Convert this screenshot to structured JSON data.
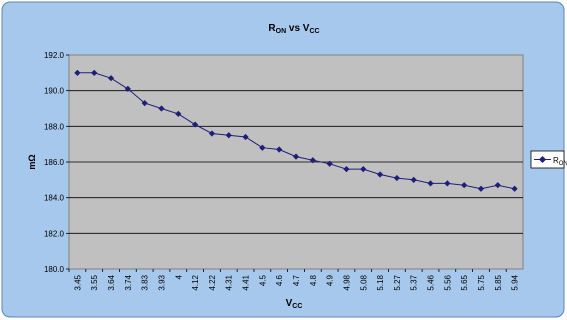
{
  "chart_data": {
    "type": "line",
    "title": {
      "main": "R",
      "main_sub": "ON",
      "mid": " vs V",
      "mid_sub": "CC"
    },
    "xlabel": {
      "main": "V",
      "sub": "CC"
    },
    "ylabel": "mΩ",
    "ylim": [
      180,
      192
    ],
    "yticks": [
      "180.0",
      "182.0",
      "184.0",
      "186.0",
      "188.0",
      "190.0",
      "192.0"
    ],
    "grid": true,
    "legend_position": "right",
    "colors": {
      "series": "#1F1F7A",
      "plot_bg": "#C0C0C0",
      "frame_bg": "#A6C8EC",
      "gridline": "#000000"
    },
    "categories": [
      "3.45",
      "3.55",
      "3.64",
      "3.74",
      "3.83",
      "3.93",
      "4",
      "4.12",
      "4.22",
      "4.31",
      "4.41",
      "4.5",
      "4.6",
      "4.7",
      "4.8",
      "4.9",
      "4.98",
      "5.08",
      "5.18",
      "5.27",
      "5.37",
      "5.46",
      "5.56",
      "5.65",
      "5.75",
      "5.85",
      "5.94"
    ],
    "series": [
      {
        "name": "R",
        "name_sub": "ON",
        "values": [
          191.0,
          191.0,
          190.7,
          190.1,
          189.3,
          189.0,
          188.7,
          188.1,
          187.6,
          187.5,
          187.4,
          186.8,
          186.7,
          186.3,
          186.1,
          185.9,
          185.6,
          185.6,
          185.3,
          185.1,
          185.0,
          184.8,
          184.8,
          184.7,
          184.5,
          184.7,
          184.5
        ]
      }
    ]
  }
}
